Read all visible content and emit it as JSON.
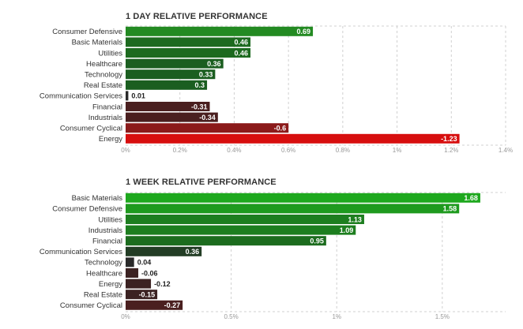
{
  "chart_data": [
    {
      "type": "bar",
      "orientation": "horizontal",
      "title": "1 DAY RELATIVE PERFORMANCE",
      "categories": [
        "Consumer Defensive",
        "Basic Materials",
        "Utilities",
        "Healthcare",
        "Technology",
        "Real Estate",
        "Communication Services",
        "Financial",
        "Industrials",
        "Consumer Cyclical",
        "Energy"
      ],
      "values": [
        0.69,
        0.46,
        0.46,
        0.36,
        0.33,
        0.3,
        0.01,
        -0.31,
        -0.34,
        -0.6,
        -1.23
      ],
      "value_labels": [
        "0.69",
        "0.46",
        "0.46",
        "0.36",
        "0.33",
        "0.3",
        "0.01",
        "-0.31",
        "-0.34",
        "-0.6",
        "-1.23"
      ],
      "bar_length_is_absolute_value": true,
      "xlim": [
        0,
        1.4
      ],
      "xticks": [
        0,
        0.2,
        0.4,
        0.6,
        0.8,
        1.0,
        1.2,
        1.4
      ],
      "xtick_labels": [
        "0%",
        "0.2%",
        "0.4%",
        "0.6%",
        "0.8%",
        "1%",
        "1.2%",
        "1.4%"
      ],
      "grid": true,
      "bar_colors": [
        "#238a22",
        "#1d6a1f",
        "#1d6a1f",
        "#1b5e20",
        "#1b5e20",
        "#1b5e20",
        "#2a2a2a",
        "#4a1f1f",
        "#4a1f1f",
        "#8b1a1a",
        "#d70e0e"
      ]
    },
    {
      "type": "bar",
      "orientation": "horizontal",
      "title": "1 WEEK RELATIVE PERFORMANCE",
      "categories": [
        "Basic Materials",
        "Consumer Defensive",
        "Utilities",
        "Industrials",
        "Financial",
        "Communication Services",
        "Technology",
        "Healthcare",
        "Energy",
        "Real Estate",
        "Consumer Cyclical"
      ],
      "values": [
        1.68,
        1.58,
        1.13,
        1.09,
        0.95,
        0.36,
        0.04,
        -0.06,
        -0.12,
        -0.15,
        -0.27
      ],
      "value_labels": [
        "1.68",
        "1.58",
        "1.13",
        "1.09",
        "0.95",
        "0.36",
        "0.04",
        "-0.06",
        "-0.12",
        "-0.15",
        "-0.27"
      ],
      "bar_length_is_absolute_value": true,
      "xlim": [
        0,
        1.8
      ],
      "xticks": [
        0,
        0.5,
        1.0,
        1.5
      ],
      "xtick_labels": [
        "0%",
        "0.5%",
        "1%",
        "1.5%"
      ],
      "grid": true,
      "bar_colors": [
        "#1ea81e",
        "#1e9a1e",
        "#1d7e1f",
        "#1d7e1f",
        "#1c6c1e",
        "#233d25",
        "#2a2a2a",
        "#3b2222",
        "#3b2222",
        "#3b2222",
        "#4a1f1f"
      ]
    }
  ],
  "style": {
    "grid_color": "#d0d0d0",
    "label_color": "#333333",
    "tick_color": "#999999",
    "bar_text_color": "#ffffff",
    "outside_text_color": "#222222"
  }
}
